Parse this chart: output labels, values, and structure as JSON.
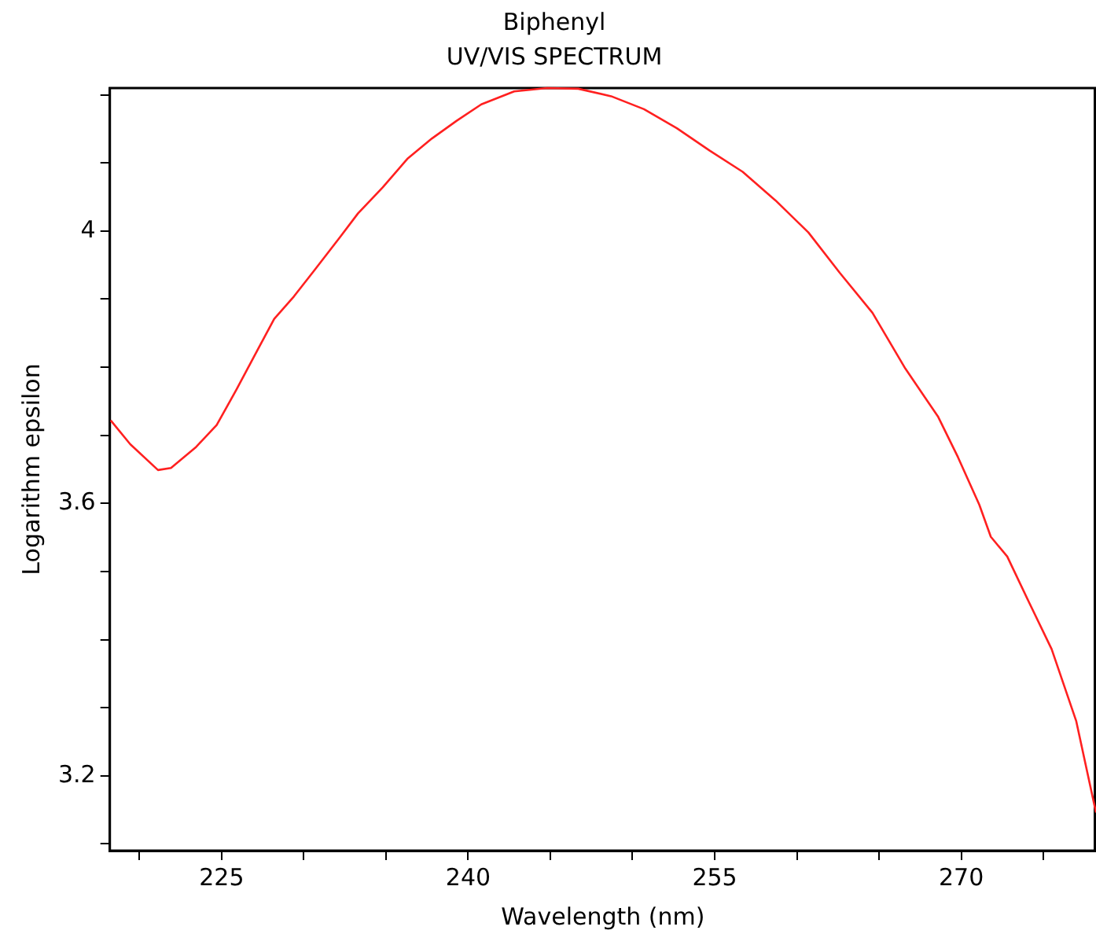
{
  "chart_data": {
    "type": "line",
    "title": "Biphenyl",
    "subtitle": "UV/VIS SPECTRUM",
    "xlabel": "Wavelength (nm)",
    "ylabel": "Logarithm epsilon",
    "xlim": [
      218.2,
      278.2
    ],
    "ylim": [
      3.09,
      4.21
    ],
    "xticks": [
      {
        "value": 220,
        "label": null
      },
      225,
      {
        "value": 230,
        "label": null
      },
      {
        "value": 235,
        "label": null
      },
      240,
      {
        "value": 245,
        "label": null
      },
      {
        "value": 250,
        "label": null
      },
      255,
      {
        "value": 260,
        "label": null
      },
      {
        "value": 265,
        "label": null
      },
      270,
      {
        "value": 275,
        "label": null
      }
    ],
    "yticks": [
      {
        "value": 3.1,
        "label": null
      },
      3.2,
      {
        "value": 3.3,
        "label": null
      },
      {
        "value": 3.4,
        "label": null
      },
      {
        "value": 3.5,
        "label": null
      },
      3.6,
      {
        "value": 3.7,
        "label": null
      },
      {
        "value": 3.8,
        "label": null
      },
      {
        "value": 3.9,
        "label": null
      },
      4,
      {
        "value": 4.1,
        "label": null
      },
      {
        "value": 4.2,
        "label": null
      }
    ],
    "grid": false,
    "legend": false,
    "marker": "none",
    "line_style": "solid",
    "series": [
      {
        "color": "#ff2020",
        "x": [
          218.25,
          219.44,
          221.13,
          221.92,
          223.41,
          224.7,
          225.9,
          227.2,
          228.2,
          229.4,
          230.6,
          232.2,
          233.3,
          234.8,
          236.3,
          237.8,
          239.3,
          240.8,
          242.8,
          244.8,
          246.7,
          248.7,
          250.7,
          252.7,
          254.7,
          256.7,
          258.7,
          260.7,
          262.6,
          264.6,
          266.6,
          268.6,
          269.8,
          271.1,
          271.8,
          272.8,
          274.1,
          275.5,
          277.0,
          278.2
        ],
        "values": [
          3.722,
          3.687,
          3.649,
          3.652,
          3.682,
          3.715,
          3.767,
          3.826,
          3.871,
          3.904,
          3.941,
          3.991,
          4.026,
          4.064,
          4.106,
          4.136,
          4.162,
          4.186,
          4.205,
          4.21,
          4.209,
          4.198,
          4.179,
          4.151,
          4.118,
          4.087,
          4.045,
          3.998,
          3.939,
          3.88,
          3.798,
          3.727,
          3.668,
          3.598,
          3.551,
          3.522,
          3.456,
          3.386,
          3.28,
          3.146
        ]
      }
    ]
  }
}
